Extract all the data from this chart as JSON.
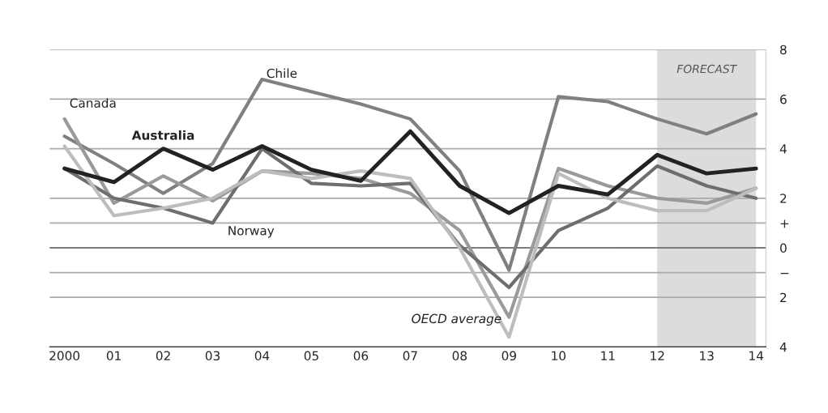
{
  "chart_data": {
    "type": "line",
    "x": [
      2000,
      2001,
      2002,
      2003,
      2004,
      2005,
      2006,
      2007,
      2008,
      2009,
      2010,
      2011,
      2012,
      2013,
      2014
    ],
    "series": [
      {
        "name": "Chile",
        "color": "#808080",
        "values": [
          4.5,
          3.4,
          2.2,
          3.4,
          6.8,
          6.3,
          5.8,
          5.2,
          3.1,
          -0.9,
          6.1,
          5.9,
          5.2,
          4.6,
          5.4
        ]
      },
      {
        "name": "Canada",
        "color": "#9a9a9a",
        "values": [
          5.2,
          1.8,
          2.9,
          1.9,
          3.1,
          3.0,
          2.8,
          2.2,
          0.7,
          -2.8,
          3.2,
          2.5,
          2.0,
          1.8,
          2.4
        ]
      },
      {
        "name": "Norway",
        "color": "#6e6e6e",
        "values": [
          3.2,
          2.0,
          1.6,
          1.0,
          4.0,
          2.6,
          2.5,
          2.6,
          0.1,
          -1.6,
          0.7,
          1.6,
          3.3,
          2.5,
          2.0
        ]
      },
      {
        "name": "OECD average",
        "color": "#bdbdbd",
        "values": [
          4.1,
          1.3,
          1.6,
          2.0,
          3.1,
          2.8,
          3.1,
          2.8,
          0.0,
          -3.6,
          3.0,
          2.0,
          1.5,
          1.5,
          2.4
        ]
      },
      {
        "name": "Australia",
        "color": "#222222",
        "values": [
          3.2,
          2.65,
          4.0,
          3.15,
          4.1,
          3.15,
          2.7,
          4.7,
          2.5,
          1.4,
          2.5,
          2.15,
          3.75,
          3.0,
          3.2
        ]
      }
    ],
    "xlim": [
      1999.7,
      2014.2
    ],
    "xticks": [
      2000,
      {
        "value": 2001,
        "label": "01"
      },
      {
        "value": 2002,
        "label": "02"
      },
      {
        "value": 2003,
        "label": "03"
      },
      {
        "value": 2004,
        "label": "04"
      },
      {
        "value": 2005,
        "label": "05"
      },
      {
        "value": 2006,
        "label": "06"
      },
      {
        "value": 2007,
        "label": "07"
      },
      {
        "value": 2008,
        "label": "08"
      },
      {
        "value": 2009,
        "label": "09"
      },
      {
        "value": 2010,
        "label": "10"
      },
      {
        "value": 2011,
        "label": "11"
      },
      {
        "value": 2012,
        "label": "12"
      },
      {
        "value": 2013,
        "label": "13"
      },
      {
        "value": 2014,
        "label": "14"
      }
    ],
    "ylim": [
      -4,
      8
    ],
    "yticks": [
      8,
      6,
      4,
      2,
      {
        "value": 1,
        "label": "+"
      },
      0,
      {
        "value": -1,
        "label": "−"
      },
      {
        "value": -2,
        "label": "2"
      },
      {
        "value": -4,
        "label": "4"
      }
    ],
    "bands": [
      {
        "axis": "x",
        "from": 2012,
        "to": 2014,
        "label": "FORECAST",
        "color": "#dcdcdc"
      }
    ],
    "grid": "y",
    "legend": false,
    "line_style": "solid",
    "marker": "none"
  }
}
